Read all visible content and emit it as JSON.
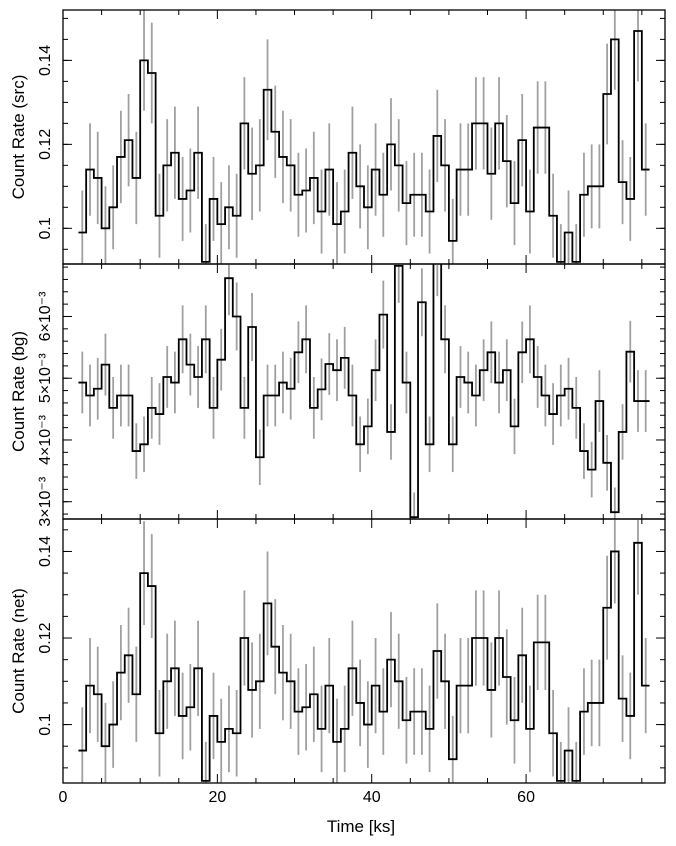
{
  "figure": {
    "xlabel": "Time [ks]"
  },
  "chart_data": [
    {
      "type": "line",
      "panel": "top",
      "ylabel": "Count Rate (src)",
      "xlim": [
        0,
        78
      ],
      "ylim": [
        0.0915,
        0.152
      ],
      "x_ticks": [
        "0",
        "20",
        "40",
        "60"
      ],
      "y_ticks": [
        {
          "value": 0.1,
          "label": "0.1"
        },
        {
          "value": 0.12,
          "label": "0.12"
        },
        {
          "value": 0.14,
          "label": "0.14"
        }
      ],
      "bin_width": 1,
      "series": [
        {
          "style": "step",
          "color": "#000000",
          "err_color": "#a0a0a0",
          "x_start": 2,
          "values": [
            0.099,
            0.114,
            0.112,
            0.1,
            0.105,
            0.117,
            0.121,
            0.112,
            0.14,
            0.137,
            0.103,
            0.115,
            0.118,
            0.107,
            0.109,
            0.118,
            0.092,
            0.107,
            0.101,
            0.105,
            0.103,
            0.125,
            0.113,
            0.115,
            0.133,
            0.123,
            0.117,
            0.115,
            0.108,
            0.109,
            0.112,
            0.104,
            0.114,
            0.101,
            0.104,
            0.118,
            0.11,
            0.105,
            0.114,
            0.108,
            0.12,
            0.115,
            0.106,
            0.108,
            0.108,
            0.104,
            0.122,
            0.115,
            0.097,
            0.114,
            0.114,
            0.125,
            0.125,
            0.113,
            0.125,
            0.116,
            0.106,
            0.121,
            0.104,
            0.124,
            0.124,
            0.103,
            0.092,
            0.099,
            0.092,
            0.108,
            0.11,
            0.11,
            0.132,
            0.145,
            0.111,
            0.107,
            0.147,
            0.114
          ],
          "errors": [
            0.01,
            0.011,
            0.011,
            0.01,
            0.01,
            0.011,
            0.011,
            0.011,
            0.012,
            0.012,
            0.01,
            0.011,
            0.011,
            0.01,
            0.01,
            0.011,
            0.009,
            0.01,
            0.01,
            0.01,
            0.01,
            0.011,
            0.011,
            0.011,
            0.012,
            0.011,
            0.011,
            0.011,
            0.01,
            0.01,
            0.011,
            0.01,
            0.011,
            0.01,
            0.01,
            0.011,
            0.01,
            0.01,
            0.011,
            0.01,
            0.011,
            0.011,
            0.01,
            0.01,
            0.01,
            0.01,
            0.011,
            0.011,
            0.01,
            0.011,
            0.011,
            0.011,
            0.011,
            0.011,
            0.011,
            0.011,
            0.01,
            0.011,
            0.01,
            0.011,
            0.011,
            0.01,
            0.009,
            0.01,
            0.009,
            0.01,
            0.01,
            0.01,
            0.012,
            0.012,
            0.01,
            0.01,
            0.012,
            0.011
          ]
        }
      ]
    },
    {
      "type": "line",
      "panel": "middle",
      "ylabel": "Count Rate (bg)",
      "xlim": [
        0,
        78
      ],
      "ylim": [
        0.00272,
        0.00685
      ],
      "y_ticks": [
        {
          "value": 0.003,
          "label": "3×10⁻³"
        },
        {
          "value": 0.004,
          "label": "4×10⁻³"
        },
        {
          "value": 0.005,
          "label": "5×10⁻³"
        },
        {
          "value": 0.006,
          "label": "6×10⁻³"
        }
      ],
      "bin_width": 1,
      "series": [
        {
          "style": "step",
          "color": "#000000",
          "err_color": "#a0a0a0",
          "x_start": 2,
          "values": [
            0.00493,
            0.00472,
            0.00483,
            0.00522,
            0.00452,
            0.00472,
            0.00472,
            0.00382,
            0.00393,
            0.00452,
            0.00442,
            0.00502,
            0.00493,
            0.00563,
            0.00522,
            0.00502,
            0.00563,
            0.00452,
            0.0053,
            0.00662,
            0.006,
            0.00452,
            0.00583,
            0.00372,
            0.00472,
            0.00472,
            0.00493,
            0.00483,
            0.00542,
            0.00563,
            0.00452,
            0.00482,
            0.00523,
            0.00513,
            0.00533,
            0.00472,
            0.00393,
            0.00422,
            0.00513,
            0.00603,
            0.00413,
            0.00682,
            0.00493,
            0.00275,
            0.00623,
            0.00393,
            0.00693,
            0.00563,
            0.00393,
            0.00502,
            0.00493,
            0.00472,
            0.00513,
            0.00542,
            0.00493,
            0.00513,
            0.00422,
            0.00542,
            0.00563,
            0.00502,
            0.00472,
            0.00442,
            0.00472,
            0.00483,
            0.00452,
            0.00382,
            0.00352,
            0.00463,
            0.00363,
            0.00283,
            0.00413,
            0.00543,
            0.00463,
            0.00463
          ],
          "errors": [
            0.0005,
            0.0005,
            0.0005,
            0.0005,
            0.0005,
            0.0005,
            0.0005,
            0.00045,
            0.00045,
            0.0005,
            0.0005,
            0.0005,
            0.0005,
            0.00055,
            0.0005,
            0.0005,
            0.00055,
            0.0005,
            0.0005,
            0.0006,
            0.00055,
            0.0005,
            0.00055,
            0.00045,
            0.0005,
            0.0005,
            0.0005,
            0.0005,
            0.0005,
            0.00055,
            0.0005,
            0.0005,
            0.0005,
            0.0005,
            0.0005,
            0.0005,
            0.00045,
            0.00045,
            0.0005,
            0.00055,
            0.00045,
            0.0006,
            0.0005,
            0.0004,
            0.00055,
            0.00045,
            0.0006,
            0.00055,
            0.00045,
            0.0005,
            0.0005,
            0.0005,
            0.0005,
            0.0005,
            0.0005,
            0.0005,
            0.00045,
            0.0005,
            0.00055,
            0.0005,
            0.0005,
            0.0005,
            0.0005,
            0.0005,
            0.0005,
            0.00045,
            0.00045,
            0.0005,
            0.00045,
            0.0004,
            0.00045,
            0.0005,
            0.0005,
            0.0005
          ]
        }
      ]
    },
    {
      "type": "line",
      "panel": "bottom",
      "ylabel": "Count Rate (net)",
      "xlim": [
        0,
        78
      ],
      "ylim": [
        0.0865,
        0.1475
      ],
      "x_ticks": [
        "0",
        "20",
        "40",
        "60"
      ],
      "xlabel": "Time [ks]",
      "y_ticks": [
        {
          "value": 0.1,
          "label": "0.1"
        },
        {
          "value": 0.12,
          "label": "0.12"
        },
        {
          "value": 0.14,
          "label": "0.14"
        }
      ],
      "bin_width": 1,
      "series": [
        {
          "style": "step",
          "color": "#000000",
          "err_color": "#a0a0a0",
          "x_start": 2,
          "values": [
            0.094,
            0.109,
            0.107,
            0.095,
            0.1,
            0.112,
            0.116,
            0.107,
            0.135,
            0.132,
            0.098,
            0.11,
            0.113,
            0.102,
            0.104,
            0.113,
            0.087,
            0.102,
            0.096,
            0.099,
            0.098,
            0.12,
            0.108,
            0.11,
            0.128,
            0.118,
            0.112,
            0.11,
            0.103,
            0.104,
            0.107,
            0.099,
            0.109,
            0.096,
            0.099,
            0.113,
            0.105,
            0.1,
            0.109,
            0.103,
            0.115,
            0.11,
            0.101,
            0.103,
            0.103,
            0.099,
            0.117,
            0.11,
            0.092,
            0.109,
            0.109,
            0.12,
            0.12,
            0.108,
            0.12,
            0.111,
            0.101,
            0.116,
            0.099,
            0.119,
            0.119,
            0.098,
            0.087,
            0.094,
            0.087,
            0.103,
            0.105,
            0.105,
            0.127,
            0.14,
            0.106,
            0.102,
            0.142,
            0.109
          ],
          "errors": [
            0.01,
            0.011,
            0.011,
            0.01,
            0.01,
            0.011,
            0.011,
            0.011,
            0.012,
            0.012,
            0.01,
            0.011,
            0.011,
            0.01,
            0.01,
            0.011,
            0.009,
            0.01,
            0.01,
            0.01,
            0.01,
            0.011,
            0.011,
            0.011,
            0.012,
            0.011,
            0.011,
            0.011,
            0.01,
            0.01,
            0.011,
            0.01,
            0.011,
            0.01,
            0.01,
            0.011,
            0.01,
            0.01,
            0.011,
            0.01,
            0.011,
            0.011,
            0.01,
            0.01,
            0.01,
            0.01,
            0.011,
            0.011,
            0.01,
            0.011,
            0.011,
            0.011,
            0.011,
            0.011,
            0.011,
            0.011,
            0.01,
            0.011,
            0.01,
            0.011,
            0.011,
            0.01,
            0.009,
            0.01,
            0.009,
            0.01,
            0.01,
            0.01,
            0.012,
            0.012,
            0.01,
            0.01,
            0.012,
            0.011
          ]
        }
      ]
    }
  ]
}
